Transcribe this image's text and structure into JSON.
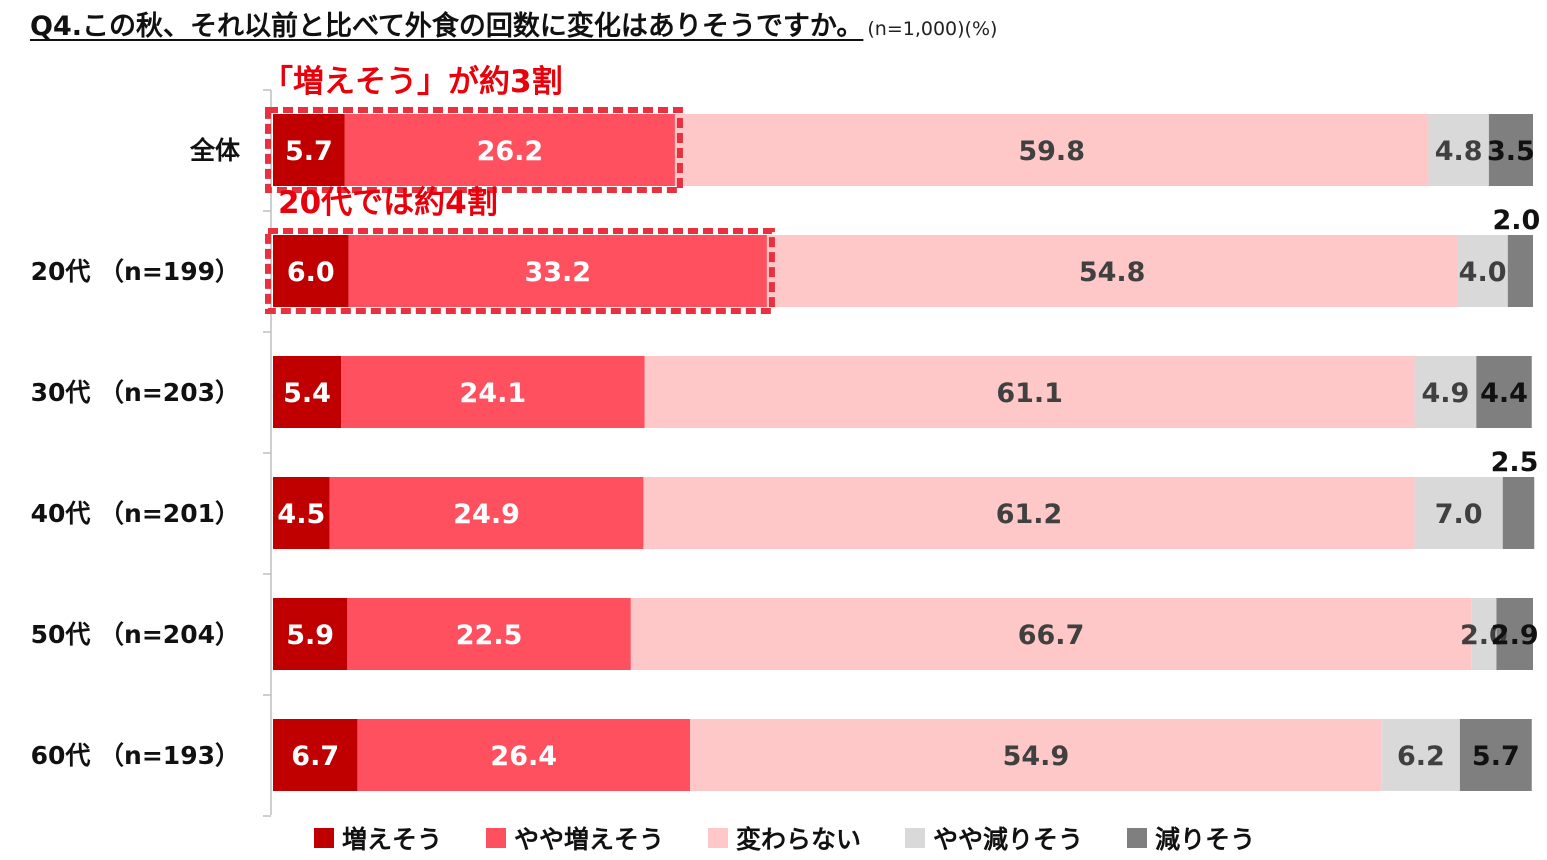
{
  "title": "Q4.この秋、それ以前と比べて外食の回数に変化はありそうですか。",
  "note": "(n=1,000)(%)",
  "callouts": [
    "「増えそう」が約3割",
    "20代では約4割"
  ],
  "colors": {
    "callout_text": "#e8000b",
    "callout_box": "#e8303e",
    "series": [
      "#c00000",
      "#ff5060",
      "#ffc8c8",
      "#d9d9d9",
      "#7f7f7f"
    ],
    "label": [
      "#ffffff",
      "#ffffff",
      "#404040",
      "#404040",
      "#111111"
    ]
  },
  "chart_data": {
    "type": "bar",
    "orientation": "horizontal",
    "stacked": true,
    "categories": [
      "全体",
      "20代 （n=199）",
      "30代 （n=203）",
      "40代 （n=201）",
      "50代 （n=204）",
      "60代 （n=193）"
    ],
    "series": [
      {
        "name": "増えそう",
        "values": [
          5.7,
          6.0,
          5.4,
          4.5,
          5.9,
          6.7
        ]
      },
      {
        "name": "やや増えそう",
        "values": [
          26.2,
          33.2,
          24.1,
          24.9,
          22.5,
          26.4
        ]
      },
      {
        "name": "変わらない",
        "values": [
          59.8,
          54.8,
          61.1,
          61.2,
          66.7,
          54.9
        ]
      },
      {
        "name": "やや減りそう",
        "values": [
          4.8,
          4.0,
          4.9,
          7.0,
          2.0,
          6.2
        ]
      },
      {
        "name": "減りそう",
        "values": [
          3.5,
          2.0,
          4.4,
          2.5,
          2.9,
          5.7
        ]
      }
    ],
    "labels": [
      [
        "5.7",
        "26.2",
        "59.8",
        "4.8",
        "3.5"
      ],
      [
        "6.0",
        "33.2",
        "54.8",
        "4.0",
        "2.0"
      ],
      [
        "5.4",
        "24.1",
        "61.1",
        "4.9",
        "4.4"
      ],
      [
        "4.5",
        "24.9",
        "61.2",
        "7.0",
        "2.5"
      ],
      [
        "5.9",
        "22.5",
        "66.7",
        "2.0",
        "2.9"
      ],
      [
        "6.7",
        "26.4",
        "54.9",
        "6.2",
        "5.7"
      ]
    ],
    "xlim": [
      0,
      100
    ],
    "legend_position": "bottom",
    "grid": false
  }
}
